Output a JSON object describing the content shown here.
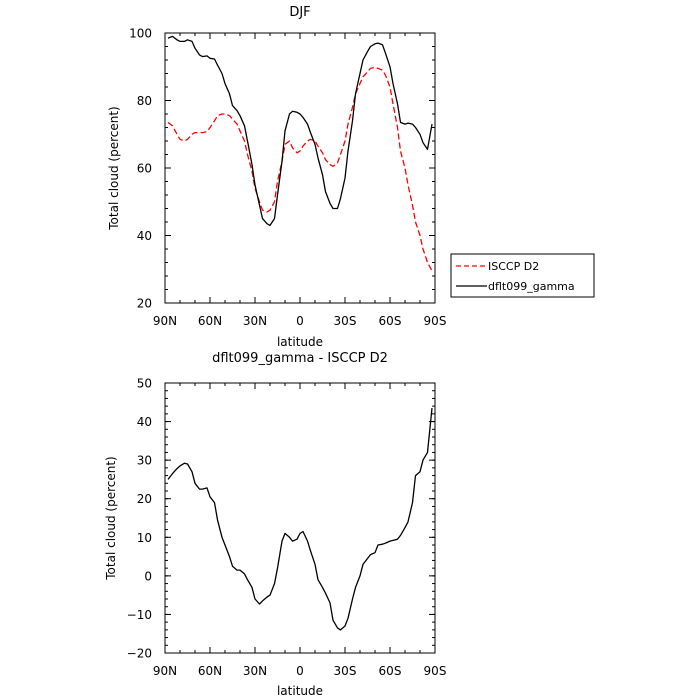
{
  "chart_data": [
    {
      "type": "line",
      "title": "DJF",
      "xlabel": "latitude",
      "ylabel": "Total cloud (percent)",
      "xlim": [
        90,
        -90
      ],
      "ylim": [
        20,
        100
      ],
      "xticks": [
        {
          "value": 90,
          "label": "90N"
        },
        {
          "value": 60,
          "label": "60N"
        },
        {
          "value": 30,
          "label": "30N"
        },
        {
          "value": 0,
          "label": "0"
        },
        {
          "value": -30,
          "label": "30S"
        },
        {
          "value": -60,
          "label": "60S"
        },
        {
          "value": -90,
          "label": "90S"
        }
      ],
      "yticks": [
        {
          "value": 20,
          "label": "20"
        },
        {
          "value": 40,
          "label": "40"
        },
        {
          "value": 60,
          "label": "60"
        },
        {
          "value": 80,
          "label": "80"
        },
        {
          "value": 100,
          "label": "100"
        }
      ],
      "legend_position": "right",
      "series": [
        {
          "name": "ISCCP D2",
          "color": "#ff0000",
          "dash": "dashed",
          "x": [
            88,
            85,
            82,
            80,
            77,
            75,
            72,
            70,
            67,
            65,
            62,
            60,
            57,
            55,
            52,
            50,
            47,
            45,
            42,
            40,
            37,
            35,
            32,
            30,
            27,
            25,
            22,
            20,
            17,
            15,
            12,
            10,
            7,
            5,
            2,
            0,
            -2,
            -5,
            -7,
            -10,
            -12,
            -15,
            -17,
            -20,
            -22,
            -25,
            -27,
            -30,
            -32,
            -35,
            -37,
            -40,
            -42,
            -45,
            -47,
            -50,
            -52,
            -55,
            -57,
            -60,
            -62,
            -65,
            -67,
            -70,
            -72,
            -75,
            -77,
            -80,
            -82,
            -85,
            -88
          ],
          "y": [
            73.5,
            72.5,
            70,
            68.5,
            68,
            68.5,
            70,
            70.5,
            70.5,
            70.5,
            70.8,
            72,
            74,
            75.5,
            76,
            76,
            75.5,
            74.5,
            73,
            71,
            68,
            64,
            59,
            54,
            50,
            47.5,
            47,
            47.5,
            50,
            56,
            62,
            67,
            68,
            66,
            64.5,
            65,
            66.5,
            68,
            68.5,
            68,
            66.5,
            64.5,
            62.5,
            61,
            60.5,
            61.5,
            64,
            68,
            73,
            78,
            82,
            85,
            87,
            88.5,
            89.5,
            89.8,
            89.5,
            89,
            87.5,
            84,
            79,
            72,
            65,
            60,
            55,
            49,
            44,
            40,
            36,
            32,
            29.5
          ]
        },
        {
          "name": "dflt099_gamma",
          "color": "#000000",
          "dash": "solid",
          "x": [
            88,
            85,
            82,
            80,
            77,
            75,
            72,
            70,
            67,
            65,
            62,
            60,
            57,
            55,
            52,
            50,
            47,
            45,
            42,
            40,
            37,
            35,
            32,
            30,
            27,
            25,
            22,
            20,
            17,
            15,
            12,
            10,
            7,
            5,
            2,
            0,
            -2,
            -5,
            -7,
            -10,
            -12,
            -15,
            -17,
            -20,
            -22,
            -25,
            -27,
            -30,
            -32,
            -35,
            -37,
            -40,
            -42,
            -45,
            -47,
            -50,
            -52,
            -55,
            -57,
            -60,
            -62,
            -65,
            -67,
            -70,
            -72,
            -75,
            -77,
            -80,
            -82,
            -85,
            -88
          ],
          "y": [
            98.5,
            99,
            98,
            97.5,
            97.5,
            98,
            97.5,
            95.5,
            93.5,
            93,
            93.2,
            92.5,
            92.3,
            90.5,
            88,
            85,
            82,
            78.5,
            77,
            75.5,
            72.5,
            68,
            61,
            55,
            49,
            45,
            43.5,
            43,
            45,
            52,
            62,
            71,
            76,
            76.8,
            76.5,
            76,
            75,
            73,
            70.5,
            67,
            63,
            58,
            53,
            49.5,
            48,
            48,
            51,
            57,
            65,
            74,
            82,
            88,
            92,
            94.5,
            96,
            96.8,
            97,
            96.5,
            94,
            90,
            85,
            79,
            73.5,
            73,
            73.3,
            73,
            72,
            70,
            67.5,
            65.5,
            73
          ]
        }
      ]
    },
    {
      "type": "line",
      "title": "dflt099_gamma - ISCCP D2",
      "xlabel": "latitude",
      "ylabel": "Total cloud (percent)",
      "xlim": [
        90,
        -90
      ],
      "ylim": [
        -20,
        50
      ],
      "xticks": [
        {
          "value": 90,
          "label": "90N"
        },
        {
          "value": 60,
          "label": "60N"
        },
        {
          "value": 30,
          "label": "30N"
        },
        {
          "value": 0,
          "label": "0"
        },
        {
          "value": -30,
          "label": "30S"
        },
        {
          "value": -60,
          "label": "60S"
        },
        {
          "value": -90,
          "label": "90S"
        }
      ],
      "yticks": [
        {
          "value": -20,
          "label": "−20"
        },
        {
          "value": -10,
          "label": "−10"
        },
        {
          "value": 0,
          "label": "0"
        },
        {
          "value": 10,
          "label": "10"
        },
        {
          "value": 20,
          "label": "20"
        },
        {
          "value": 30,
          "label": "30"
        },
        {
          "value": 40,
          "label": "40"
        },
        {
          "value": 50,
          "label": "50"
        }
      ],
      "series": [
        {
          "color": "#000000",
          "dash": "solid",
          "x": [
            88,
            85,
            82,
            80,
            77,
            75,
            72,
            70,
            67,
            65,
            62,
            60,
            57,
            55,
            52,
            50,
            47,
            45,
            42,
            40,
            37,
            35,
            32,
            30,
            27,
            25,
            22,
            20,
            17,
            15,
            12,
            10,
            7,
            5,
            2,
            0,
            -2,
            -5,
            -7,
            -10,
            -12,
            -15,
            -17,
            -20,
            -22,
            -25,
            -27,
            -30,
            -32,
            -35,
            -37,
            -40,
            -42,
            -45,
            -47,
            -50,
            -52,
            -55,
            -57,
            -60,
            -62,
            -65,
            -67,
            -70,
            -72,
            -75,
            -77,
            -80,
            -82,
            -85,
            -88
          ],
          "y": [
            25,
            26.5,
            27.8,
            28.5,
            29.2,
            29,
            27,
            24,
            22.5,
            22.5,
            22.8,
            20.5,
            19,
            14.5,
            10,
            8,
            5,
            2.5,
            1.5,
            1.5,
            0.5,
            -1,
            -3,
            -6,
            -7.3,
            -6.5,
            -5.5,
            -5,
            -2,
            2,
            9,
            11,
            10,
            9,
            9.5,
            11,
            11.5,
            9,
            6.5,
            3,
            -1,
            -3,
            -4.5,
            -7,
            -11.5,
            -13.5,
            -14,
            -13,
            -11,
            -6,
            -3,
            0,
            3,
            4.5,
            5.5,
            6,
            8,
            8.2,
            8.5,
            9,
            9.2,
            9.5,
            10.5,
            12.5,
            14,
            19,
            26,
            27,
            30,
            32,
            43.5
          ]
        }
      ]
    }
  ]
}
